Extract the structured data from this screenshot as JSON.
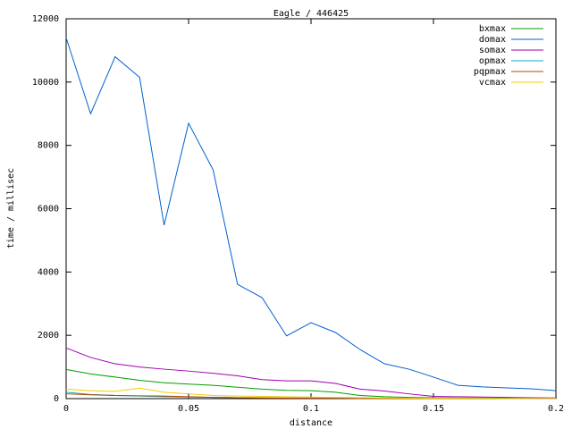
{
  "chart_data": {
    "type": "line",
    "title": "Eagle / 446425",
    "x_label": "distance",
    "y_label": "time / millisec",
    "x": [
      0,
      0.01,
      0.02,
      0.03,
      0.04,
      0.05,
      0.06,
      0.07,
      0.08,
      0.09,
      0.1,
      0.11,
      0.12,
      0.13,
      0.14,
      0.15,
      0.16,
      0.17,
      0.18,
      0.19,
      0.2
    ],
    "series": [
      {
        "name": "bxmax",
        "color": "#00a000",
        "values": [
          920,
          780,
          680,
          580,
          500,
          460,
          420,
          360,
          300,
          260,
          250,
          200,
          100,
          60,
          40,
          30,
          20,
          20,
          15,
          10,
          10
        ]
      },
      {
        "name": "domax",
        "color": "#0060d0",
        "values": [
          11400,
          9000,
          10800,
          10150,
          5480,
          8700,
          7230,
          3610,
          3190,
          1980,
          2400,
          2090,
          1550,
          1100,
          930,
          680,
          420,
          370,
          340,
          310,
          250
        ]
      },
      {
        "name": "somax",
        "color": "#a000b0",
        "values": [
          1600,
          1300,
          1100,
          1000,
          930,
          870,
          800,
          720,
          600,
          560,
          560,
          480,
          300,
          240,
          150,
          70,
          60,
          50,
          40,
          30,
          20
        ]
      },
      {
        "name": "opmax",
        "color": "#00b0c0",
        "values": [
          200,
          130,
          100,
          80,
          60,
          50,
          40,
          30,
          25,
          20,
          20,
          15,
          10,
          10,
          10,
          5,
          5,
          5,
          5,
          5,
          5
        ]
      },
      {
        "name": "pqpmax",
        "color": "#c04000",
        "values": [
          150,
          120,
          100,
          90,
          80,
          60,
          40,
          30,
          20,
          15,
          10,
          10,
          5,
          5,
          5,
          5,
          5,
          5,
          5,
          5,
          5
        ]
      },
      {
        "name": "vcmax",
        "color": "#f0d000",
        "values": [
          300,
          250,
          230,
          330,
          200,
          150,
          100,
          80,
          70,
          60,
          50,
          40,
          30,
          20,
          15,
          10,
          10,
          10,
          5,
          5,
          5
        ]
      }
    ],
    "xlim": [
      0,
      0.2
    ],
    "xticks": [
      0,
      0.05,
      0.1,
      0.15,
      0.2
    ],
    "ylim": [
      0,
      12000
    ],
    "yticks": [
      0,
      2000,
      4000,
      6000,
      8000,
      10000,
      12000
    ],
    "grid": false,
    "legend": "top-right"
  }
}
